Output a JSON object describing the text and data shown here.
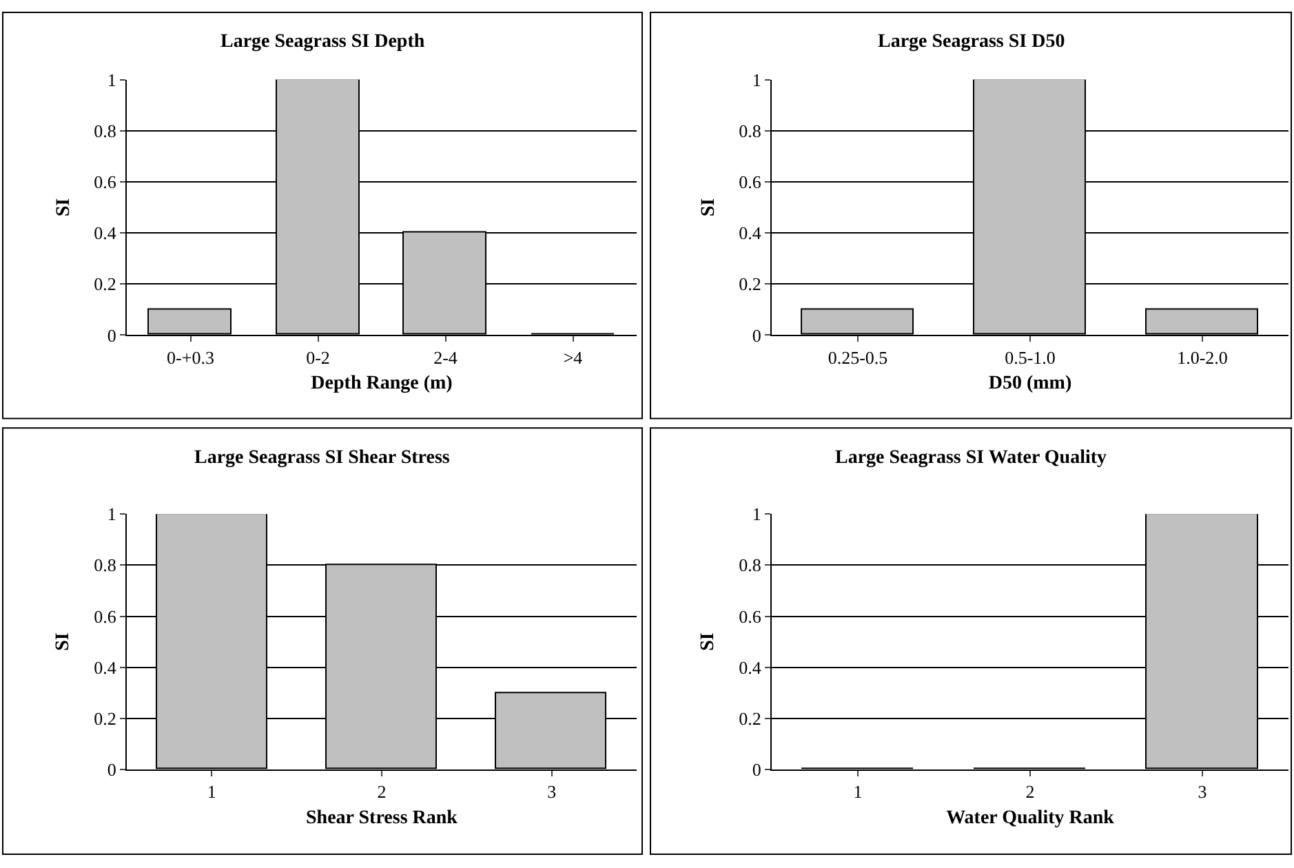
{
  "chart_data": [
    {
      "type": "bar",
      "title": "Large Seagrass SI Depth",
      "xlabel": "Depth Range (m)",
      "ylabel": "SI",
      "categories": [
        "0-+0.3",
        "0-2",
        "2-4",
        ">4"
      ],
      "values": [
        0.1,
        1,
        0.4,
        0
      ],
      "color": "#c0c0c0",
      "ylim": [
        0,
        1
      ],
      "yticks": [
        0,
        0.2,
        0.4,
        0.6,
        0.8,
        1
      ],
      "grid": "y"
    },
    {
      "type": "bar",
      "title": "Large Seagrass SI D50",
      "xlabel": "D50 (mm)",
      "ylabel": "SI",
      "categories": [
        "0.25-0.5",
        "0.5-1.0",
        "1.0-2.0"
      ],
      "values": [
        0.1,
        1,
        0.1
      ],
      "color": "#c0c0c0",
      "ylim": [
        0,
        1
      ],
      "yticks": [
        0,
        0.2,
        0.4,
        0.6,
        0.8,
        1
      ],
      "grid": "y"
    },
    {
      "type": "bar",
      "title": "Large Seagrass SI Shear Stress",
      "xlabel": "Shear Stress Rank",
      "ylabel": "SI",
      "categories": [
        "1",
        "2",
        "3"
      ],
      "values": [
        1,
        0.8,
        0.3
      ],
      "color": "#c0c0c0",
      "ylim": [
        0,
        1
      ],
      "yticks": [
        0,
        0.2,
        0.4,
        0.6,
        0.8,
        1
      ],
      "grid": "y"
    },
    {
      "type": "bar",
      "title": "Large Seagrass SI Water Quality",
      "xlabel": "Water Quality Rank",
      "ylabel": "SI",
      "categories": [
        "1",
        "2",
        "3"
      ],
      "values": [
        0,
        0,
        1
      ],
      "color": "#c0c0c0",
      "ylim": [
        0,
        1
      ],
      "yticks": [
        0,
        0.2,
        0.4,
        0.6,
        0.8,
        1
      ],
      "grid": "y"
    }
  ]
}
